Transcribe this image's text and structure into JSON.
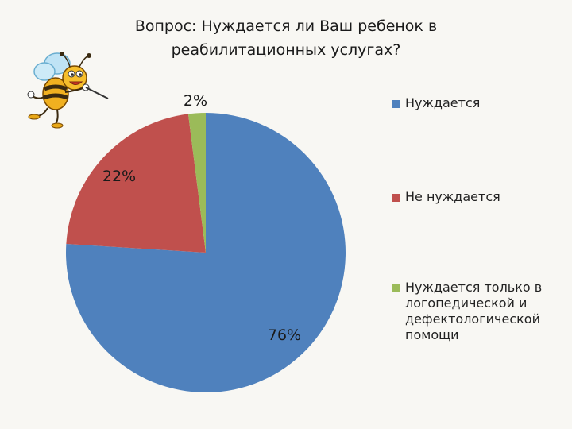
{
  "title": {
    "line1": "Вопрос: Нуждается ли Ваш ребенок в",
    "line2": "реабилитационных услугах?"
  },
  "illustration": {
    "icon": "cartoon-bee-with-pointer-icon"
  },
  "colors": {
    "background": "#f8f7f3",
    "series": [
      "#4f81bd",
      "#c0504d",
      "#9bbb59"
    ]
  },
  "chart_data": {
    "type": "pie",
    "title": "Вопрос: Нуждается ли Ваш ребенок в реабилитационных услугах?",
    "start": "12 o'clock",
    "direction": "clockwise",
    "legend_position": "right",
    "categories": [
      "Нуждается",
      "Не нуждается",
      "Нуждается только в логопедической и дефектологической помощи"
    ],
    "values": [
      76,
      22,
      2
    ],
    "data_labels": [
      "76%",
      "22%",
      "2%"
    ]
  },
  "legend": {
    "items": [
      {
        "lines": [
          "Нуждается"
        ]
      },
      {
        "lines": [
          "Не нуждается"
        ]
      },
      {
        "lines": [
          "Нуждается только в",
          "логопедической и",
          "дефектологической",
          "помощи"
        ]
      }
    ]
  }
}
